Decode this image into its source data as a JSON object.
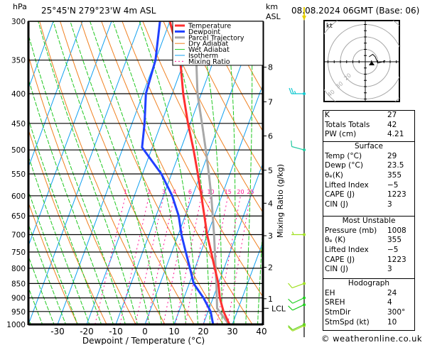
{
  "header": {
    "pressure_unit": "hPa",
    "location": "25°45'N 279°23'W 4m ASL",
    "km_label": "km",
    "asl_label": "ASL",
    "datetime": "08.08.2024 06GMT (Base: 06)"
  },
  "legend": [
    {
      "label": "Temperature",
      "color": "#ff3030",
      "style": "thick"
    },
    {
      "label": "Dewpoint",
      "color": "#2040ff",
      "style": "thick"
    },
    {
      "label": "Parcel Trajectory",
      "color": "#a8a8a8",
      "style": "thick"
    },
    {
      "label": "Dry Adiabat",
      "color": "#f08020",
      "style": "thin"
    },
    {
      "label": "Wet Adiabat",
      "color": "#20c820",
      "style": "thin"
    },
    {
      "label": "Isotherm",
      "color": "#10a0f0",
      "style": "thin"
    },
    {
      "label": "Mixing Ratio",
      "color": "#ff1493",
      "style": "dotted"
    }
  ],
  "chart_data": {
    "type": "skew-t",
    "xlabel": "Dewpoint / Temperature (°C)",
    "ylabel": "hPa",
    "right_label": "Mixing Ratio (g/kg)",
    "pressure_range": [
      1000,
      300
    ],
    "temperature_range_at_1000": [
      -40,
      40
    ],
    "pressure_ticks": [
      300,
      350,
      400,
      450,
      500,
      550,
      600,
      650,
      700,
      750,
      800,
      850,
      900,
      950,
      1000
    ],
    "x_ticks": [
      -30,
      -20,
      -10,
      0,
      10,
      20,
      30,
      40
    ],
    "km_ticks": [
      {
        "label": "1",
        "p": 903
      },
      {
        "label": "2",
        "p": 797
      },
      {
        "label": "3",
        "p": 703
      },
      {
        "label": "4",
        "p": 618
      },
      {
        "label": "5",
        "p": 542
      },
      {
        "label": "6",
        "p": 473
      },
      {
        "label": "7",
        "p": 413
      },
      {
        "label": "8",
        "p": 360
      }
    ],
    "lcl": {
      "label": "LCL",
      "p": 938
    },
    "mixing_ratio_labels": [
      "1",
      "2",
      "3",
      "4",
      "6",
      "8",
      "10",
      "15",
      "20",
      "25"
    ],
    "mixing_ratio_values": [
      1,
      2,
      3,
      4,
      6,
      8,
      10,
      15,
      20,
      25
    ],
    "temperature": {
      "p": [
        1005,
        1000,
        950,
        900,
        850,
        800,
        750,
        700,
        650,
        600,
        550,
        500,
        450,
        400,
        350,
        300
      ],
      "t": [
        29.5,
        29,
        25.3,
        22.3,
        20,
        16.8,
        13.5,
        9.9,
        6.6,
        3,
        -1,
        -5.5,
        -10.8,
        -16.2,
        -21.5,
        -30
      ]
    },
    "dewpoint": {
      "p": [
        1005,
        1000,
        950,
        900,
        850,
        800,
        750,
        700,
        650,
        600,
        550,
        495,
        450,
        400,
        350,
        300
      ],
      "t": [
        23.5,
        23.4,
        20.9,
        16.7,
        11.5,
        8.3,
        4.8,
        1.1,
        -2.2,
        -7,
        -13.5,
        -23.5,
        -25.7,
        -29,
        -30,
        -33.4
      ]
    },
    "parcel": {
      "p": [
        1005,
        1000,
        938,
        850,
        700,
        600,
        550,
        500,
        450,
        400,
        350,
        300
      ],
      "t": [
        29.5,
        28.8,
        22.7,
        19.3,
        12.3,
        6.4,
        2.8,
        -1.3,
        -6,
        -11.3,
        -16,
        -24
      ]
    },
    "wind_barbs": [
      {
        "p": 1005,
        "dir": 245,
        "kt": 10,
        "color": "#a0e020"
      },
      {
        "p": 1000,
        "dir": 245,
        "kt": 10,
        "color": "#60d020"
      },
      {
        "p": 925,
        "dir": 245,
        "kt": 10,
        "color": "#20d020"
      },
      {
        "p": 900,
        "dir": 245,
        "kt": 10,
        "color": "#20d020"
      },
      {
        "p": 850,
        "dir": 250,
        "kt": 10,
        "color": "#a0e020"
      },
      {
        "p": 700,
        "dir": 270,
        "kt": 5,
        "color": "#a0e020"
      },
      {
        "p": 500,
        "dir": 285,
        "kt": 10,
        "color": "#20c8a0"
      },
      {
        "p": 400,
        "dir": 270,
        "kt": 25,
        "color": "#10c8d0"
      }
    ]
  },
  "hodograph": {
    "unit_label": "kt",
    "ring_labels": [
      "10",
      "20",
      "30",
      "40"
    ],
    "trace_kt": [
      [
        3,
        4
      ],
      [
        6,
        6
      ],
      [
        8,
        4
      ],
      [
        10,
        -1
      ],
      [
        14,
        0
      ],
      [
        16,
        1
      ]
    ]
  },
  "indices": {
    "general": [
      {
        "label": "K",
        "value": "27"
      },
      {
        "label": "Totals Totals",
        "value": "42"
      },
      {
        "label": "PW (cm)",
        "value": "4.21"
      }
    ],
    "surface": {
      "title": "Surface",
      "rows": [
        {
          "label": "Temp (°C)",
          "value": "29"
        },
        {
          "label": "Dewp (°C)",
          "value": "23.5"
        },
        {
          "label": "θₑ(K)",
          "value": "355"
        },
        {
          "label": "Lifted Index",
          "value": "−5"
        },
        {
          "label": "CAPE (J)",
          "value": "1223"
        },
        {
          "label": "CIN (J)",
          "value": "3"
        }
      ]
    },
    "most_unstable": {
      "title": "Most Unstable",
      "rows": [
        {
          "label": "Pressure (mb)",
          "value": "1008"
        },
        {
          "label": "θₑ (K)",
          "value": "355"
        },
        {
          "label": "Lifted Index",
          "value": "−5"
        },
        {
          "label": "CAPE (J)",
          "value": "1223"
        },
        {
          "label": "CIN (J)",
          "value": "3"
        }
      ]
    },
    "hodograph": {
      "title": "Hodograph",
      "rows": [
        {
          "label": "EH",
          "value": "24"
        },
        {
          "label": "SREH",
          "value": "4"
        },
        {
          "label": "StmDir",
          "value": "300°"
        },
        {
          "label": "StmSpd (kt)",
          "value": "10"
        }
      ]
    }
  },
  "footer": {
    "copyright": "© weatheronline.co.uk"
  }
}
